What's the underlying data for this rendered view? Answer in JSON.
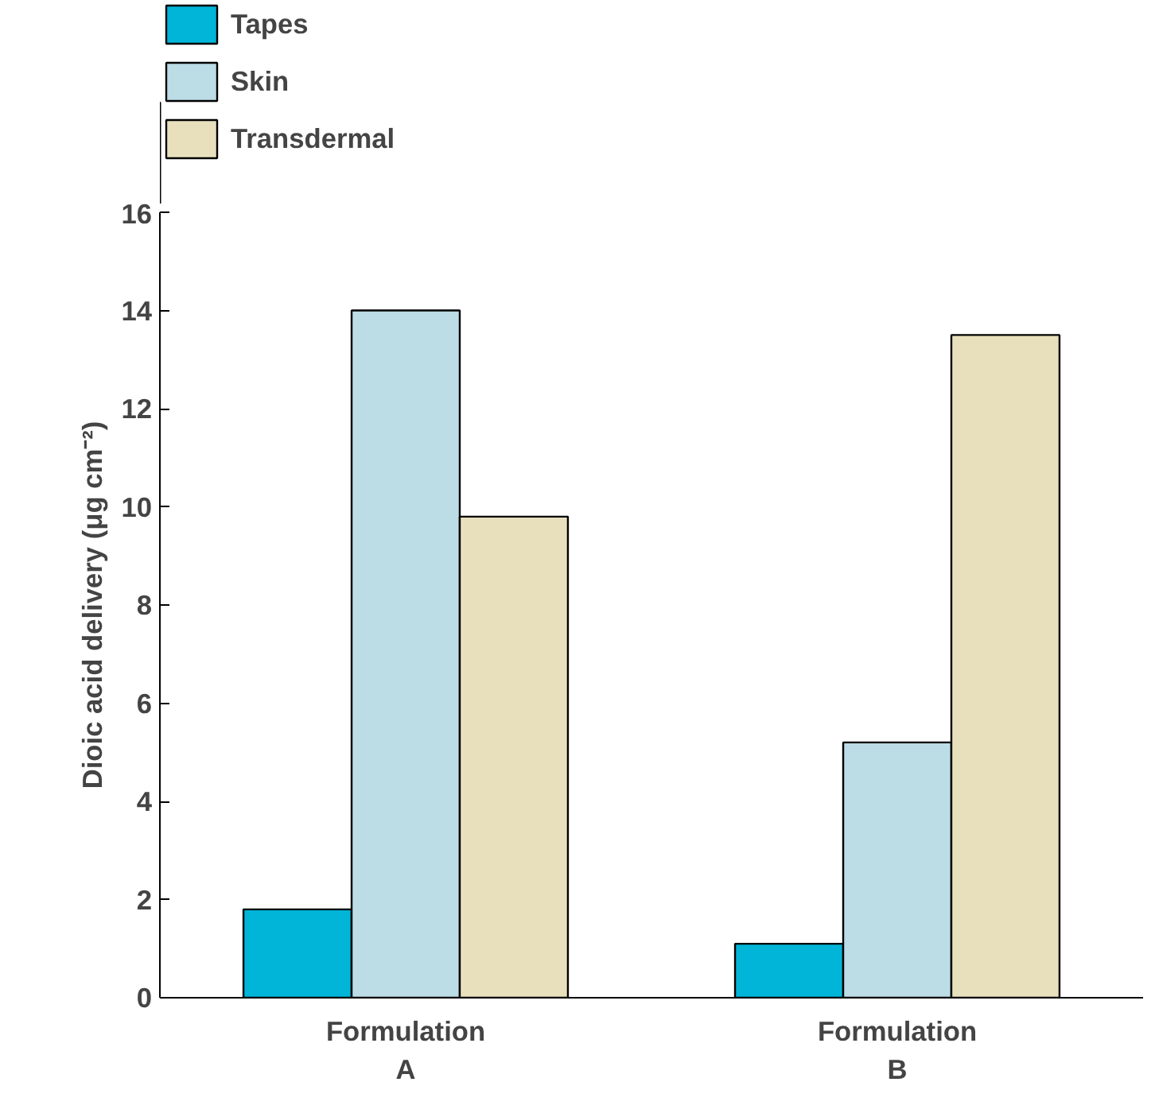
{
  "chart_data": {
    "type": "bar",
    "categories": [
      "Formulation\nA",
      "Formulation\nB"
    ],
    "series": [
      {
        "name": "Tapes",
        "color": "#00b5d8",
        "values": [
          1.8,
          1.1
        ]
      },
      {
        "name": "Skin",
        "color": "#bcdce6",
        "values": [
          14.0,
          5.2
        ]
      },
      {
        "name": "Transdermal",
        "color": "#e8e0bd",
        "values": [
          9.8,
          13.5
        ]
      }
    ],
    "ylabel": "Dioic acid delivery (μg cm⁻²)",
    "ylim": [
      0,
      16
    ],
    "yticks": [
      0,
      2,
      4,
      6,
      8,
      10,
      12,
      14,
      16
    ],
    "grid": false,
    "legend": "top left"
  }
}
